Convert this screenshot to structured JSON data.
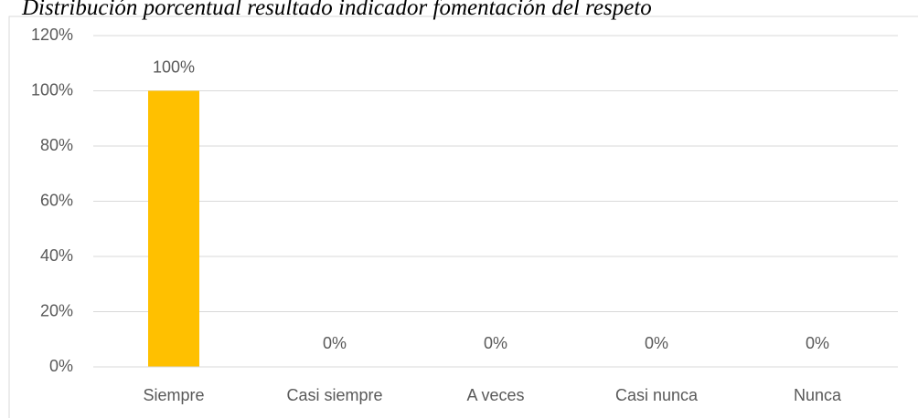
{
  "chart_data": {
    "type": "bar",
    "title": "Distribución porcentual resultado indicador fomentación del respeto",
    "categories": [
      "Siempre",
      "Casi siempre",
      "A veces",
      "Casi nunca",
      "Nunca"
    ],
    "values": [
      100,
      0,
      0,
      0,
      0
    ],
    "value_labels": [
      "100%",
      "0%",
      "0%",
      "0%",
      "0%"
    ],
    "color": "#ffc000",
    "ylim": [
      0,
      120
    ],
    "yticks": [
      {
        "value": 0,
        "label": "0%"
      },
      {
        "value": 20,
        "label": "20%"
      },
      {
        "value": 40,
        "label": "40%"
      },
      {
        "value": 60,
        "label": "60%"
      },
      {
        "value": 80,
        "label": "80%"
      },
      {
        "value": 100,
        "label": "100%"
      },
      {
        "value": 120,
        "label": "120%"
      }
    ],
    "grid": true
  }
}
